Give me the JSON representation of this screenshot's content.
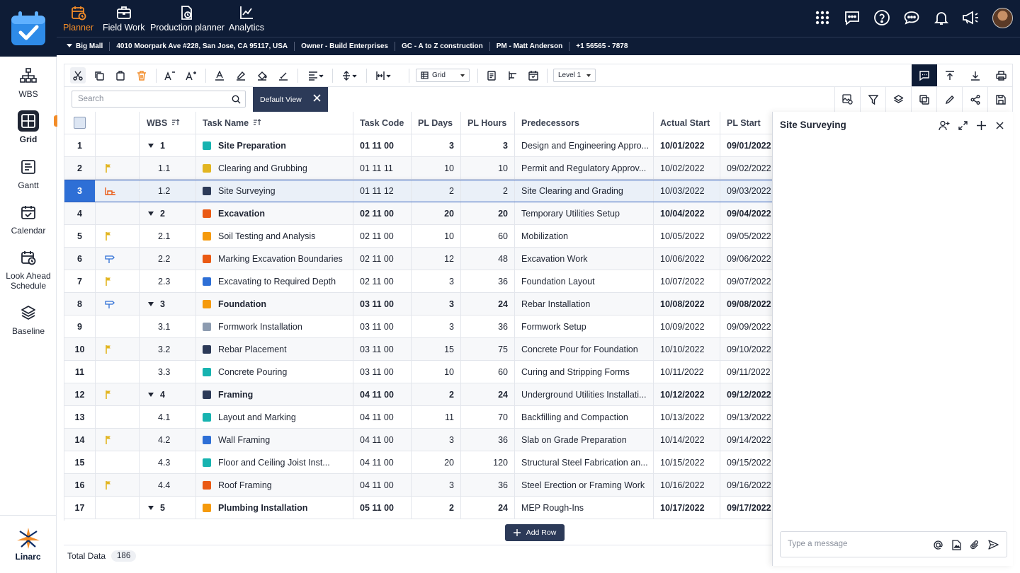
{
  "top_nav": [
    {
      "label": "Planner",
      "icon": "calendar-clock-icon",
      "active": true
    },
    {
      "label": "Field Work",
      "icon": "briefcase-icon"
    },
    {
      "label": "Production planner",
      "icon": "document-clock-icon"
    },
    {
      "label": "Analytics",
      "icon": "line-chart-icon"
    }
  ],
  "project": {
    "name": "Big Mall",
    "address": "4010 Moorpark Ave #228, San Jose, CA 95117, USA",
    "owner": "Owner - Build Enterprises",
    "gc": "GC - A to Z construction",
    "pm": "PM -  Matt Anderson",
    "phone": "+1 56565 - 7878"
  },
  "sidebar": [
    {
      "label": "WBS",
      "icon": "hierarchy-icon"
    },
    {
      "label": "Grid",
      "icon": "grid-icon",
      "active": true
    },
    {
      "label": "Gantt",
      "icon": "gantt-icon"
    },
    {
      "label": "Calendar",
      "icon": "calendar-icon"
    },
    {
      "label": "Look Ahead Schedule",
      "icon": "calendar-lookahead-icon"
    },
    {
      "label": "Baseline",
      "icon": "layers-icon"
    }
  ],
  "brand": {
    "name": "Linarc"
  },
  "toolbar": {
    "grid_select": "Grid",
    "level_select": "Level 1"
  },
  "search": {
    "placeholder": "Search"
  },
  "view": {
    "label": "Default View"
  },
  "columns": [
    "WBS",
    "Task Name",
    "Task Code",
    "PL Days",
    "PL Hours",
    "Predecessors",
    "Actual Start",
    "PL Start"
  ],
  "rows": [
    {
      "n": "1",
      "flag": "",
      "wbs": "1",
      "parent": true,
      "name": "Site Preparation",
      "color": "#17b3b0",
      "code": "01 11 00",
      "days": "3",
      "hours": "3",
      "pred": "Design and Engineering Appro...",
      "astart": "10/01/2022",
      "pstart": "09/01/2022"
    },
    {
      "n": "2",
      "flag": "flag",
      "wbs": "1.1",
      "parent": false,
      "name": "Clearing and Grubbing",
      "color": "#e2b521",
      "code": "01 11 11",
      "days": "10",
      "hours": "10",
      "pred": "Permit and Regulatory Approv...",
      "astart": "10/02/2022",
      "pstart": "09/02/2022"
    },
    {
      "n": "3",
      "flag": "constraint",
      "wbs": "1.2",
      "parent": false,
      "name": "Site Surveying",
      "color": "#2c3a58",
      "code": "01 11 12",
      "days": "2",
      "hours": "2",
      "pred": "Site Clearing and Grading",
      "astart": "10/03/2022",
      "pstart": "09/03/2022",
      "selected": true
    },
    {
      "n": "4",
      "flag": "",
      "wbs": "2",
      "parent": true,
      "name": "Excavation",
      "color": "#ea5a14",
      "code": "02 11 00",
      "days": "20",
      "hours": "20",
      "pred": "Temporary Utilities Setup",
      "astart": "10/04/2022",
      "pstart": "09/04/2022"
    },
    {
      "n": "5",
      "flag": "flag",
      "wbs": "2.1",
      "parent": false,
      "name": "Soil Testing and Analysis",
      "color": "#f59a0c",
      "code": "02 11 00",
      "days": "10",
      "hours": "60",
      "pred": "Mobilization",
      "astart": "10/05/2022",
      "pstart": "09/05/2022"
    },
    {
      "n": "6",
      "flag": "sign",
      "wbs": "2.2",
      "parent": false,
      "name": "Marking Excavation Boundaries",
      "color": "#ea5a14",
      "code": "02 11 00",
      "days": "12",
      "hours": "48",
      "pred": "Excavation Work",
      "astart": "10/06/2022",
      "pstart": "09/06/2022"
    },
    {
      "n": "7",
      "flag": "flag",
      "wbs": "2.3",
      "parent": false,
      "name": "Excavating to Required Depth",
      "color": "#2e6fd6",
      "code": "02 11 00",
      "days": "3",
      "hours": "36",
      "pred": "Foundation Layout",
      "astart": "10/07/2022",
      "pstart": "09/07/2022"
    },
    {
      "n": "8",
      "flag": "sign",
      "wbs": "3",
      "parent": true,
      "name": "Foundation",
      "color": "#f59a0c",
      "code": "03 11 00",
      "days": "3",
      "hours": "24",
      "pred": "Rebar Installation",
      "astart": "10/08/2022",
      "pstart": "09/08/2022"
    },
    {
      "n": "9",
      "flag": "",
      "wbs": "3.1",
      "parent": false,
      "name": "Formwork Installation",
      "color": "#8c9bb0",
      "code": "03 11 00",
      "days": "3",
      "hours": "36",
      "pred": "Formwork Setup",
      "astart": "10/09/2022",
      "pstart": "09/09/2022"
    },
    {
      "n": "10",
      "flag": "flag",
      "wbs": "3.2",
      "parent": false,
      "name": "Rebar Placement",
      "color": "#2c3a58",
      "code": "03 11 00",
      "days": "15",
      "hours": "75",
      "pred": "Concrete Pour for Foundation",
      "astart": "10/10/2022",
      "pstart": "09/10/2022"
    },
    {
      "n": "11",
      "flag": "",
      "wbs": "3.3",
      "parent": false,
      "name": "Concrete Pouring",
      "color": "#17b3b0",
      "code": "03 11 00",
      "days": "10",
      "hours": "60",
      "pred": "Curing and Stripping Forms",
      "astart": "10/11/2022",
      "pstart": "09/11/2022"
    },
    {
      "n": "12",
      "flag": "flag",
      "wbs": "4",
      "parent": true,
      "name": "Framing",
      "color": "#2c3a58",
      "code": "04 11 00",
      "days": "2",
      "hours": "24",
      "pred": "Underground Utilities Installati...",
      "astart": "10/12/2022",
      "pstart": "09/12/2022"
    },
    {
      "n": "13",
      "flag": "",
      "wbs": "4.1",
      "parent": false,
      "name": "Layout and Marking",
      "color": "#17b3b0",
      "code": "04 11 00",
      "days": "11",
      "hours": "70",
      "pred": "Backfilling and Compaction",
      "astart": "10/13/2022",
      "pstart": "09/13/2022"
    },
    {
      "n": "14",
      "flag": "flag",
      "wbs": "4.2",
      "parent": false,
      "name": "Wall Framing",
      "color": "#2e6fd6",
      "code": "04 11 00",
      "days": "3",
      "hours": "36",
      "pred": "Slab on Grade Preparation",
      "astart": "10/14/2022",
      "pstart": "09/14/2022"
    },
    {
      "n": "15",
      "flag": "",
      "wbs": "4.3",
      "parent": false,
      "name": "Floor and Ceiling Joist Inst...",
      "color": "#17b3b0",
      "code": "04 11 00",
      "days": "20",
      "hours": "120",
      "pred": "Structural Steel Fabrication an...",
      "astart": "10/15/2022",
      "pstart": "09/15/2022"
    },
    {
      "n": "16",
      "flag": "flag",
      "wbs": "4.4",
      "parent": false,
      "name": "Roof Framing",
      "color": "#ea5a14",
      "code": "04 11 00",
      "days": "3",
      "hours": "36",
      "pred": "Steel Erection or Framing Work",
      "astart": "10/16/2022",
      "pstart": "09/16/2022"
    },
    {
      "n": "17",
      "flag": "",
      "wbs": "5",
      "parent": true,
      "name": "Plumbing Installation",
      "color": "#f59a0c",
      "code": "05 11 00",
      "days": "2",
      "hours": "24",
      "pred": "MEP Rough-Ins",
      "astart": "10/17/2022",
      "pstart": "09/17/2022"
    }
  ],
  "add_row": {
    "label": "Add Row"
  },
  "footer": {
    "total_label": "Total Data",
    "total_value": "186"
  },
  "panel": {
    "title": "Site Surveying",
    "message_placeholder": "Type a message"
  }
}
